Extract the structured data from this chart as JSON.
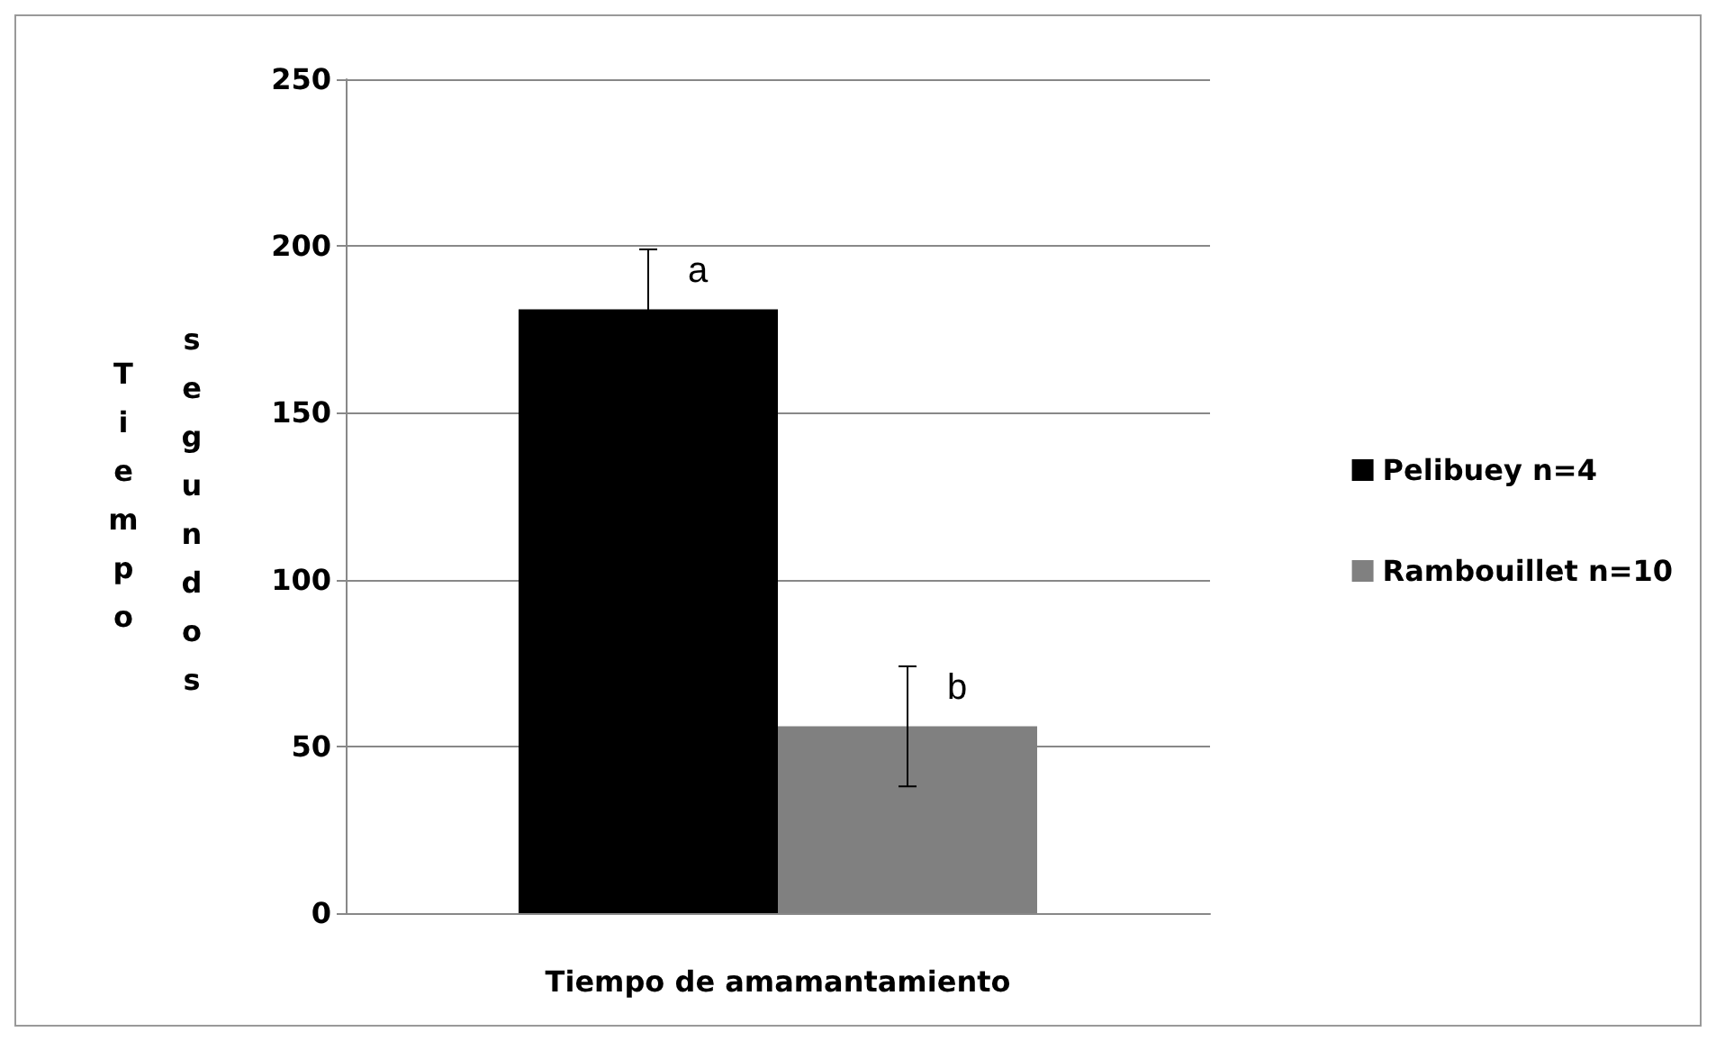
{
  "chart_data": {
    "type": "bar",
    "xlabel": "Tiempo de amamantamiento",
    "ylabel": "Tiempo segundos",
    "categories": [
      null
    ],
    "series": [
      {
        "name": "Pelibuey n=4",
        "color": "#000000",
        "values": [
          181
        ],
        "errors": [
          18
        ]
      },
      {
        "name": "Rambouillet n=10",
        "color": "#808080",
        "values": [
          56
        ],
        "errors": [
          18
        ]
      }
    ],
    "annotations": [
      "a",
      "b"
    ],
    "ylim": [
      0,
      250
    ],
    "yticks": [
      0,
      50,
      100,
      150,
      200,
      250
    ],
    "grid": "y",
    "legend": "right"
  }
}
